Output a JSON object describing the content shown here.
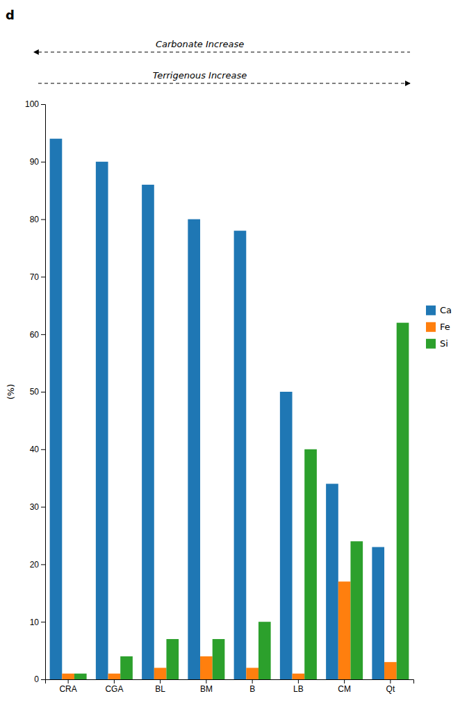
{
  "chart_data": {
    "type": "bar",
    "ylabel": "(%)",
    "categories": [
      "CRA",
      "CGA",
      "BL",
      "BM",
      "B",
      "LB",
      "CM",
      "Qt"
    ],
    "series": [
      {
        "name": "Ca",
        "values": [
          94,
          90,
          86,
          80,
          78,
          50,
          34,
          23
        ]
      },
      {
        "name": "Fe",
        "values": [
          1,
          1,
          2,
          4,
          2,
          1,
          17,
          3
        ]
      },
      {
        "name": "Si",
        "values": [
          1,
          4,
          7,
          7,
          10,
          40,
          24,
          62
        ]
      }
    ],
    "ylim": [
      0,
      100
    ],
    "yticks": [
      0,
      10,
      20,
      30,
      40,
      50,
      60,
      70,
      80,
      90,
      100
    ],
    "grid": false,
    "legend": "right",
    "annotations": [
      {
        "text": "d"
      },
      {
        "text": "Carbonate Increase",
        "arrow": "left"
      },
      {
        "text": "Terrigenous Increase",
        "arrow": "right"
      }
    ]
  }
}
